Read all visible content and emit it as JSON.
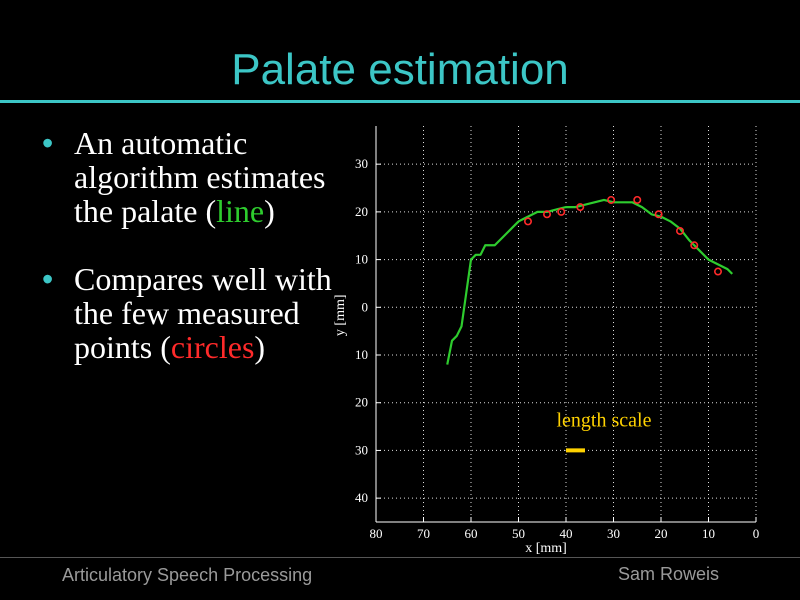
{
  "slide": {
    "title": "Palate estimation",
    "bullets": [
      {
        "lead": "An automatic algorithm estimates the palate (",
        "highlight": "line",
        "tail": ")"
      },
      {
        "lead": "Compares well with the few measured points (",
        "highlight": "circles",
        "tail": ")"
      }
    ],
    "bullet_symbol": "•"
  },
  "footer": {
    "left": "Articulatory Speech Processing",
    "right": "Sam Roweis"
  },
  "colors": {
    "title": "#3cc6c6",
    "line": "#2ecc2e",
    "circles": "#ff2a2a",
    "scale": "#ffd200"
  },
  "chart_data": {
    "type": "line",
    "xlabel": "x [mm]",
    "ylabel": "y [mm]",
    "xlim": [
      80,
      0
    ],
    "ylim": [
      -45,
      38
    ],
    "x_ticks": [
      80,
      70,
      60,
      50,
      40,
      30,
      20,
      10,
      0
    ],
    "x_tick_labels": [
      "80",
      "70",
      "60",
      "50",
      "40",
      "30",
      "20",
      "10",
      "0"
    ],
    "y_ticks": [
      30,
      20,
      10,
      0,
      -10,
      -20,
      -30,
      -40
    ],
    "y_tick_labels": [
      "30",
      "20",
      "10",
      "0",
      "10",
      "20",
      "30",
      "40"
    ],
    "grid": true,
    "series": [
      {
        "style": "line",
        "x": [
          65,
          64,
          63,
          62,
          61,
          60,
          59,
          58,
          57,
          56,
          55,
          54,
          53,
          52,
          51,
          50,
          49,
          48,
          47,
          46,
          44,
          42,
          40,
          38,
          36,
          34,
          32,
          30,
          28,
          26,
          24,
          22,
          20,
          18,
          16,
          14,
          12,
          10,
          8,
          6,
          5
        ],
        "y": [
          -12,
          -7,
          -6,
          -4,
          3,
          10,
          11,
          11,
          13,
          13,
          13,
          14,
          15,
          16,
          17,
          18,
          18.5,
          19,
          19.5,
          20,
          20,
          20.5,
          21,
          21,
          21.5,
          22,
          22.5,
          22,
          22,
          22,
          21,
          19.5,
          19,
          18,
          16.5,
          14,
          12,
          10,
          9,
          8,
          7
        ]
      },
      {
        "style": "scatter",
        "x": [
          48,
          44,
          41,
          37,
          30.5,
          25,
          20.5,
          16,
          13,
          8
        ],
        "y": [
          18,
          19.5,
          20,
          21,
          22.5,
          22.5,
          19.5,
          16,
          13,
          7.5
        ]
      }
    ],
    "annotations": [
      {
        "text": "length scale",
        "x": 42,
        "y": -25
      }
    ],
    "scale_bar": {
      "x0": 40,
      "x1": 36,
      "y": -30
    }
  }
}
